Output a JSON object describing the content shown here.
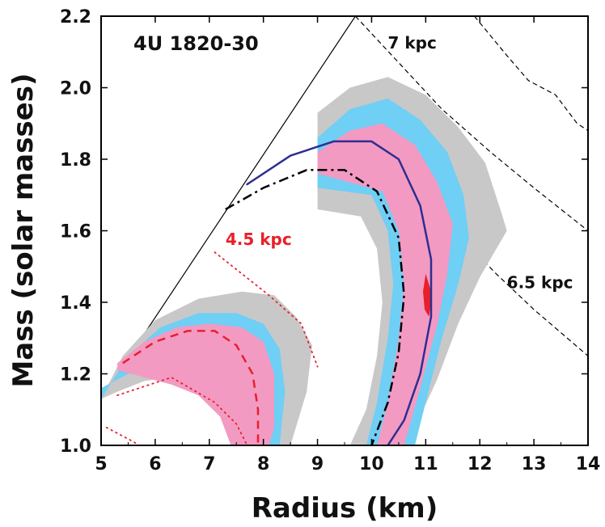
{
  "chart_data": {
    "type": "contour",
    "title": "4U 1820-30",
    "xlabel": "Radius (km)",
    "ylabel": "Mass (solar masses)",
    "xlim": [
      5,
      14
    ],
    "ylim": [
      1.0,
      2.2
    ],
    "xticks": [
      5,
      6,
      7,
      8,
      9,
      10,
      11,
      12,
      13,
      14
    ],
    "yticks": [
      1.0,
      1.2,
      1.4,
      1.6,
      1.8,
      2.0,
      2.2
    ],
    "ytick_labels": [
      "1.0",
      "1.2",
      "1.4",
      "1.6",
      "1.8",
      "2.0",
      "2.2"
    ],
    "colors": {
      "outer": "#c8c8c8",
      "middle": "#6fcff5",
      "inner": "#f39ac3",
      "core": "#e8202a",
      "blue": "#2c2f8f",
      "red": "#e8202a"
    },
    "annotations": [
      {
        "text": "7 kpc",
        "x": 10.3,
        "y": 2.11,
        "color": "#111111"
      },
      {
        "text": "6.5 kpc",
        "x": 12.5,
        "y": 1.44,
        "color": "#111111"
      },
      {
        "text": "4.5 kpc",
        "x": 7.3,
        "y": 1.56,
        "color": "#e8202a"
      }
    ],
    "series": [
      {
        "name": "causality limit",
        "style": "solid-thin",
        "color": "#000000",
        "points": [
          [
            5.0,
            1.13
          ],
          [
            9.7,
            2.2
          ]
        ]
      },
      {
        "name": "7 kpc boundary",
        "style": "dashed",
        "color": "#000000",
        "points": [
          [
            9.7,
            2.2
          ],
          [
            10.5,
            2.07
          ],
          [
            11.3,
            1.94
          ],
          [
            12.2,
            1.82
          ],
          [
            13.0,
            1.72
          ],
          [
            14.0,
            1.6
          ]
        ]
      },
      {
        "name": "6.5 kpc boundary",
        "style": "dashed",
        "color": "#000000",
        "points": [
          [
            10.0,
            1.84
          ],
          [
            10.8,
            1.72
          ],
          [
            11.6,
            1.59
          ],
          [
            12.3,
            1.48
          ],
          [
            13.0,
            1.38
          ],
          [
            14.0,
            1.25
          ]
        ]
      },
      {
        "name": "upper-right dashed",
        "style": "dashed",
        "color": "#000000",
        "points": [
          [
            11.9,
            2.2
          ],
          [
            12.5,
            2.09
          ],
          [
            12.9,
            2.02
          ],
          [
            13.4,
            1.98
          ],
          [
            13.8,
            1.9
          ],
          [
            14.0,
            1.88
          ]
        ]
      },
      {
        "name": "4U 1820-30 outer contour (gray)",
        "style": "fill",
        "color": "#c8c8c8",
        "points": [
          [
            9.0,
            1.93
          ],
          [
            9.6,
            2.0
          ],
          [
            10.3,
            2.03
          ],
          [
            11.0,
            1.98
          ],
          [
            11.6,
            1.89
          ],
          [
            12.1,
            1.79
          ],
          [
            12.4,
            1.65
          ],
          [
            12.5,
            1.6
          ],
          [
            12.0,
            1.47
          ],
          [
            11.6,
            1.34
          ],
          [
            11.2,
            1.18
          ],
          [
            10.8,
            1.05
          ],
          [
            10.6,
            1.0
          ],
          [
            9.6,
            1.0
          ],
          [
            9.9,
            1.1
          ],
          [
            10.1,
            1.25
          ],
          [
            10.2,
            1.4
          ],
          [
            10.1,
            1.55
          ],
          [
            9.8,
            1.64
          ],
          [
            9.0,
            1.66
          ]
        ]
      },
      {
        "name": "4U 1820-30 middle contour (cyan)",
        "style": "fill",
        "color": "#6fcff5",
        "points": [
          [
            9.0,
            1.86
          ],
          [
            9.6,
            1.94
          ],
          [
            10.3,
            1.97
          ],
          [
            10.9,
            1.91
          ],
          [
            11.4,
            1.82
          ],
          [
            11.7,
            1.7
          ],
          [
            11.8,
            1.58
          ],
          [
            11.6,
            1.45
          ],
          [
            11.3,
            1.3
          ],
          [
            11.0,
            1.12
          ],
          [
            10.8,
            1.0
          ],
          [
            9.9,
            1.0
          ],
          [
            10.1,
            1.12
          ],
          [
            10.3,
            1.3
          ],
          [
            10.4,
            1.45
          ],
          [
            10.3,
            1.6
          ],
          [
            10.0,
            1.7
          ],
          [
            9.0,
            1.72
          ]
        ]
      },
      {
        "name": "4U 1820-30 inner contour (pink)",
        "style": "fill",
        "color": "#f39ac3",
        "points": [
          [
            9.0,
            1.82
          ],
          [
            9.6,
            1.88
          ],
          [
            10.2,
            1.9
          ],
          [
            10.8,
            1.84
          ],
          [
            11.2,
            1.74
          ],
          [
            11.5,
            1.62
          ],
          [
            11.4,
            1.48
          ],
          [
            11.2,
            1.33
          ],
          [
            10.9,
            1.16
          ],
          [
            10.6,
            1.0
          ],
          [
            10.1,
            1.0
          ],
          [
            10.3,
            1.12
          ],
          [
            10.5,
            1.3
          ],
          [
            10.6,
            1.45
          ],
          [
            10.5,
            1.6
          ],
          [
            10.2,
            1.71
          ],
          [
            9.0,
            1.76
          ]
        ]
      },
      {
        "name": "4.5 kpc outer contour (gray)",
        "style": "fill",
        "color": "#c8c8c8",
        "points": [
          [
            5.0,
            1.13
          ],
          [
            5.4,
            1.25
          ],
          [
            6.0,
            1.35
          ],
          [
            6.8,
            1.41
          ],
          [
            7.6,
            1.43
          ],
          [
            8.2,
            1.42
          ],
          [
            8.6,
            1.36
          ],
          [
            8.9,
            1.28
          ],
          [
            8.8,
            1.15
          ],
          [
            8.5,
            1.0
          ],
          [
            7.8,
            1.0
          ],
          [
            7.7,
            1.1
          ],
          [
            7.3,
            1.15
          ],
          [
            6.8,
            1.18
          ],
          [
            6.3,
            1.19
          ],
          [
            5.8,
            1.18
          ],
          [
            5.3,
            1.15
          ],
          [
            5.0,
            1.13
          ]
        ]
      },
      {
        "name": "4.5 kpc middle contour (cyan)",
        "style": "fill",
        "color": "#6fcff5",
        "points": [
          [
            5.0,
            1.13
          ],
          [
            5.5,
            1.25
          ],
          [
            6.1,
            1.33
          ],
          [
            6.8,
            1.37
          ],
          [
            7.5,
            1.37
          ],
          [
            8.0,
            1.34
          ],
          [
            8.3,
            1.27
          ],
          [
            8.4,
            1.15
          ],
          [
            8.3,
            1.0
          ],
          [
            7.6,
            1.0
          ],
          [
            7.4,
            1.1
          ],
          [
            7.0,
            1.16
          ],
          [
            6.5,
            1.2
          ],
          [
            6.0,
            1.21
          ],
          [
            5.5,
            1.2
          ],
          [
            5.0,
            1.16
          ]
        ]
      },
      {
        "name": "4.5 kpc inner contour (pink)",
        "style": "fill",
        "color": "#f39ac3",
        "points": [
          [
            5.3,
            1.23
          ],
          [
            5.8,
            1.29
          ],
          [
            6.4,
            1.33
          ],
          [
            7.0,
            1.34
          ],
          [
            7.6,
            1.33
          ],
          [
            8.0,
            1.29
          ],
          [
            8.2,
            1.2
          ],
          [
            8.2,
            1.05
          ],
          [
            8.1,
            1.0
          ],
          [
            7.4,
            1.0
          ],
          [
            7.2,
            1.08
          ],
          [
            6.8,
            1.14
          ],
          [
            6.3,
            1.17
          ],
          [
            5.8,
            1.19
          ],
          [
            5.3,
            1.21
          ]
        ]
      },
      {
        "name": "best-fit core",
        "style": "fill",
        "color": "#e8202a",
        "points": [
          [
            11.0,
            1.48
          ],
          [
            11.08,
            1.44
          ],
          [
            11.1,
            1.4
          ],
          [
            11.06,
            1.36
          ],
          [
            10.98,
            1.38
          ],
          [
            10.95,
            1.43
          ]
        ]
      },
      {
        "name": "blue mass-radius curve",
        "style": "solid",
        "color": "#2c2f8f",
        "points": [
          [
            7.7,
            1.73
          ],
          [
            8.5,
            1.81
          ],
          [
            9.3,
            1.85
          ],
          [
            10.0,
            1.85
          ],
          [
            10.5,
            1.8
          ],
          [
            10.9,
            1.67
          ],
          [
            11.1,
            1.52
          ],
          [
            11.1,
            1.36
          ],
          [
            10.9,
            1.2
          ],
          [
            10.6,
            1.07
          ],
          [
            10.3,
            1.0
          ]
        ]
      },
      {
        "name": "black dash-dot curve",
        "style": "dashdot",
        "color": "#000000",
        "points": [
          [
            7.3,
            1.66
          ],
          [
            8.0,
            1.72
          ],
          [
            8.8,
            1.77
          ],
          [
            9.5,
            1.77
          ],
          [
            10.1,
            1.71
          ],
          [
            10.5,
            1.58
          ],
          [
            10.6,
            1.42
          ],
          [
            10.5,
            1.26
          ],
          [
            10.3,
            1.12
          ],
          [
            10.0,
            1.0
          ]
        ]
      },
      {
        "name": "red dashed curve",
        "style": "dashed",
        "color": "#e8202a",
        "points": [
          [
            5.4,
            1.23
          ],
          [
            6.0,
            1.29
          ],
          [
            6.6,
            1.32
          ],
          [
            7.1,
            1.32
          ],
          [
            7.5,
            1.28
          ],
          [
            7.8,
            1.2
          ],
          [
            7.9,
            1.1
          ],
          [
            7.9,
            1.0
          ]
        ]
      },
      {
        "name": "red dotted line upper",
        "style": "dotted",
        "color": "#e8202a",
        "points": [
          [
            7.1,
            1.54
          ],
          [
            7.6,
            1.48
          ],
          [
            8.1,
            1.42
          ],
          [
            8.7,
            1.34
          ],
          [
            9.0,
            1.22
          ]
        ]
      },
      {
        "name": "red dotted line lower",
        "style": "dotted",
        "color": "#e8202a",
        "points": [
          [
            5.1,
            1.05
          ],
          [
            5.6,
            1.01
          ],
          [
            5.7,
            1.0
          ]
        ]
      },
      {
        "name": "red dotted line middle",
        "style": "dotted",
        "color": "#e8202a",
        "points": [
          [
            5.3,
            1.14
          ],
          [
            6.3,
            1.19
          ],
          [
            7.1,
            1.12
          ],
          [
            7.5,
            1.06
          ],
          [
            7.7,
            1.0
          ]
        ]
      }
    ]
  }
}
